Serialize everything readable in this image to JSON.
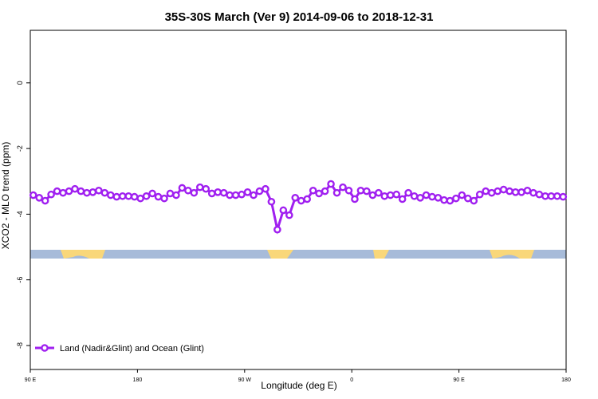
{
  "chart_data": {
    "type": "line",
    "title": "35S-30S March (Ver 9)   2014-09-06 to 2018-12-31",
    "x_label": "Longitude (deg E)",
    "y_label": "XCO2 - MLO trend (ppm)",
    "x": [
      92.5,
      97.5,
      102.5,
      107.5,
      112.5,
      117.5,
      122.5,
      127.5,
      132.5,
      137.5,
      142.5,
      147.5,
      152.5,
      157.5,
      162.5,
      167.5,
      172.5,
      177.5,
      182.5,
      187.5,
      192.5,
      197.5,
      202.5,
      207.5,
      212.5,
      217.5,
      222.5,
      227.5,
      232.5,
      237.5,
      242.5,
      247.5,
      252.5,
      257.5,
      262.5,
      267.5,
      272.5,
      277.5,
      282.5,
      287.5,
      292.5,
      297.5,
      302.5,
      307.5,
      312.5,
      317.5,
      322.5,
      327.5,
      332.5,
      337.5,
      342.5,
      347.5,
      352.5,
      357.5,
      362.5,
      367.5,
      372.5,
      377.5,
      382.5,
      387.5,
      392.5,
      397.5,
      402.5,
      407.5,
      412.5,
      417.5,
      422.5,
      427.5,
      432.5,
      437.5,
      442.5,
      447.5,
      452.5,
      457.5,
      462.5,
      467.5,
      472.5,
      477.5,
      482.5,
      487.5,
      492.5,
      497.5,
      502.5,
      507.5,
      512.5,
      517.5,
      522.5,
      527.5,
      532.5,
      537.5
    ],
    "series": [
      {
        "name": "Land (Nadir&Glint) and Ocean (Glint)",
        "color": "#a020f0",
        "values": [
          -3.42,
          -3.5,
          -3.59,
          -3.4,
          -3.3,
          -3.35,
          -3.3,
          -3.23,
          -3.3,
          -3.35,
          -3.33,
          -3.28,
          -3.35,
          -3.42,
          -3.47,
          -3.45,
          -3.45,
          -3.47,
          -3.52,
          -3.45,
          -3.37,
          -3.47,
          -3.52,
          -3.37,
          -3.42,
          -3.2,
          -3.28,
          -3.35,
          -3.18,
          -3.23,
          -3.37,
          -3.33,
          -3.35,
          -3.42,
          -3.42,
          -3.4,
          -3.33,
          -3.42,
          -3.3,
          -3.23,
          -3.62,
          -4.47,
          -3.88,
          -4.03,
          -3.5,
          -3.59,
          -3.54,
          -3.28,
          -3.37,
          -3.3,
          -3.08,
          -3.35,
          -3.18,
          -3.28,
          -3.54,
          -3.28,
          -3.3,
          -3.42,
          -3.35,
          -3.45,
          -3.42,
          -3.4,
          -3.54,
          -3.35,
          -3.45,
          -3.5,
          -3.42,
          -3.47,
          -3.5,
          -3.57,
          -3.59,
          -3.52,
          -3.42,
          -3.52,
          -3.59,
          -3.4,
          -3.3,
          -3.35,
          -3.3,
          -3.25,
          -3.3,
          -3.33,
          -3.33,
          -3.28,
          -3.35,
          -3.4,
          -3.45,
          -3.45,
          -3.45,
          -3.47
        ]
      }
    ],
    "xlim": [
      90,
      540
    ],
    "xticks": [
      {
        "value": 90,
        "label": "90 E"
      },
      180,
      {
        "value": 270,
        "label": "90 W"
      },
      {
        "value": 360,
        "label": "0"
      },
      {
        "value": 450,
        "label": "90 E"
      },
      180.0001
    ],
    "ylim": [
      -8.73,
      1.6
    ],
    "yticks": [
      -8,
      -6,
      -4,
      -2,
      0
    ],
    "legend": "bottom-left"
  }
}
